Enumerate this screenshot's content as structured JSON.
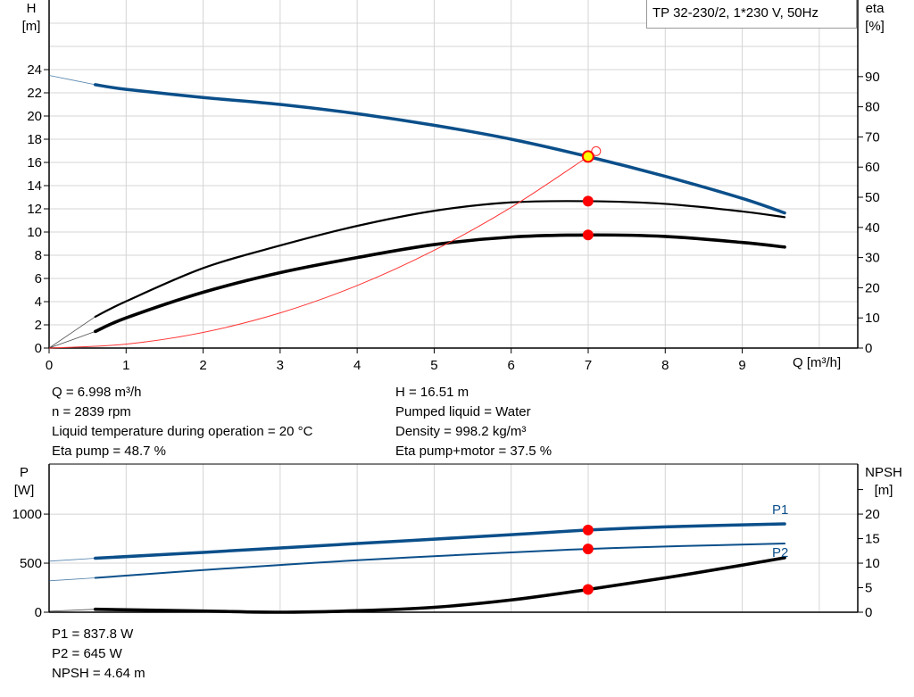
{
  "chart_data": [
    {
      "type": "line",
      "title": "TP 32-230/2, 1*230 V, 50Hz",
      "xlabel": "Q [m³/h]",
      "ylabel": "H [m]",
      "ylabel_right": "eta [%]",
      "xlim": [
        0,
        10.5
      ],
      "ylim": [
        0,
        30
      ],
      "ylim_right": [
        0,
        115.4
      ],
      "x_ticks": [
        0,
        1,
        2,
        3,
        4,
        5,
        6,
        7,
        8,
        9
      ],
      "y_ticks": [
        0,
        2,
        4,
        6,
        8,
        10,
        12,
        14,
        16,
        18,
        20,
        22,
        24
      ],
      "y_ticks_right": [
        0,
        10,
        20,
        30,
        40,
        50,
        60,
        70,
        80,
        90
      ],
      "grid": true,
      "series": [
        {
          "key": "H",
          "axis": "left",
          "color": "#0b4f8a",
          "x": [
            0,
            0.6,
            1,
            2,
            3,
            4,
            5,
            6,
            7,
            8,
            9,
            9.55
          ],
          "y": [
            23.5,
            22.7,
            22.3,
            21.6,
            21.0,
            20.2,
            19.2,
            18.0,
            16.5,
            14.8,
            12.9,
            11.65
          ]
        },
        {
          "key": "eta_pump",
          "axis": "right",
          "color": "#000000",
          "x": [
            0,
            0.6,
            1,
            2,
            3,
            4,
            5,
            6,
            7,
            8,
            9,
            9.55
          ],
          "y": [
            0,
            10.4,
            15.5,
            26.5,
            34,
            40.5,
            45.5,
            48.3,
            48.7,
            47.8,
            45.3,
            43.4
          ]
        },
        {
          "key": "eta_pump_motor",
          "axis": "right",
          "color": "#000000",
          "x": [
            0,
            0.6,
            1,
            2,
            3,
            4,
            5,
            6,
            7,
            8,
            9,
            9.55
          ],
          "y": [
            0,
            5.5,
            10,
            18.5,
            25,
            30,
            34.3,
            36.8,
            37.5,
            37,
            35,
            33.5
          ]
        },
        {
          "key": "system_curve",
          "axis": "left",
          "color": "#ff3333",
          "x": [
            0,
            1,
            2,
            3,
            4,
            5,
            6,
            7
          ],
          "y": [
            0,
            0.34,
            1.35,
            3.03,
            5.39,
            8.43,
            12.13,
            16.51
          ]
        }
      ],
      "duty_point": {
        "Q": 6.998,
        "H": 16.51,
        "eta_pump": 48.7,
        "eta_pump_motor": 37.5
      }
    },
    {
      "type": "line",
      "ylabel": "P [W]",
      "ylabel_right": "NPSH [m]",
      "xlim": [
        0,
        10.5
      ],
      "ylim": [
        0,
        1510
      ],
      "ylim_right": [
        0,
        30.2
      ],
      "y_ticks": [
        0,
        500,
        1000
      ],
      "y_ticks_right": [
        0,
        5,
        10,
        15,
        20
      ],
      "grid": true,
      "series": [
        {
          "key": "P1",
          "name": "P1",
          "axis": "left",
          "color": "#0b4f8a",
          "x": [
            0,
            0.6,
            2,
            4,
            6,
            7,
            8,
            9.55
          ],
          "y": [
            520,
            550,
            610,
            700,
            790,
            837.8,
            870,
            900
          ]
        },
        {
          "key": "P2",
          "name": "P2",
          "axis": "left",
          "color": "#0b4f8a",
          "x": [
            0,
            0.6,
            2,
            4,
            6,
            7,
            8,
            9.55
          ],
          "y": [
            320,
            350,
            430,
            530,
            610,
            645,
            670,
            700
          ]
        },
        {
          "key": "NPSH",
          "axis": "right",
          "color": "#000000",
          "x": [
            0,
            0.6,
            2,
            3,
            4,
            5,
            6,
            7,
            8,
            9,
            9.55
          ],
          "y": [
            0.2,
            0.6,
            0.25,
            0,
            0.3,
            1.0,
            2.5,
            4.64,
            7.0,
            9.6,
            11.1
          ]
        }
      ],
      "duty_point": {
        "Q": 6.998,
        "P1": 837.8,
        "P2": 645,
        "NPSH": 4.64
      }
    }
  ],
  "top_labels": {
    "h": "H",
    "h_unit": "[m]",
    "eta": "eta",
    "eta_unit": "[%]",
    "q": "Q [m³/h]",
    "title": "TP 32-230/2, 1*230 V, 50Hz"
  },
  "bottom_labels": {
    "p": "P",
    "p_unit": "[W]",
    "npsh": "NPSH",
    "npsh_unit": "[m]",
    "p1": "P1",
    "p2": "P2"
  },
  "info": {
    "q": "Q = 6.998 m³/h",
    "n": "n = 2839 rpm",
    "temp": "Liquid temperature during operation = 20 °C",
    "eta_pump": "Eta pump = 48.7 %",
    "h": "H = 16.51 m",
    "liquid": "Pumped liquid = Water",
    "density": "Density = 998.2 kg/m³",
    "eta_pm": "Eta pump+motor = 37.5 %",
    "p1": "P1 = 837.8 W",
    "p2": "P2 = 645 W",
    "npsh": "NPSH = 4.64 m"
  }
}
